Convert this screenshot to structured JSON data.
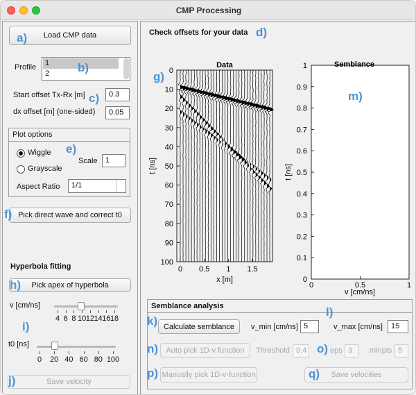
{
  "window": {
    "title": "CMP Processing"
  },
  "annotations": {
    "a": "a)",
    "b": "b)",
    "c": "c)",
    "d": "d)",
    "e": "e)",
    "f": "f)",
    "g": "g)",
    "h": "h)",
    "i": "i)",
    "j": "j)",
    "k": "k)",
    "l": "l)",
    "m": "m)",
    "n": "n)",
    "o": "o)",
    "p": "p)",
    "q": "q)"
  },
  "left": {
    "load_cmp_label": "Load CMP data",
    "profile_label": "Profile",
    "profile_items": [
      "1",
      "2"
    ],
    "start_offset_label": "Start offset Tx-Rx [m]",
    "start_offset_value": "0.3",
    "dx_offset_label": "dx offset [m] (one-sided)",
    "dx_offset_value": "0.05",
    "plot_options": {
      "title": "Plot options",
      "wiggle_label": "Wiggle",
      "grayscale_label": "Grayscale",
      "scale_label": "Scale",
      "scale_value": "1",
      "aspect_label": "Aspect Ratio",
      "aspect_value": "1/1",
      "selected_mode": "Wiggle"
    },
    "pick_direct_label": "Pick direct wave and correct t0",
    "hyperbola_title": "Hyperbola fitting",
    "pick_apex_label": "Pick apex of hyperbola",
    "v_label": "v [cm/ns]",
    "v_ticks": [
      "4",
      "6",
      "8",
      "10",
      "12",
      "14",
      "16",
      "18"
    ],
    "t0_label": "t0 [ns]",
    "t0_ticks": [
      "0",
      "20",
      "40",
      "60",
      "80",
      "100"
    ],
    "save_velocity_label": "Save velocity"
  },
  "right": {
    "header": "Check offsets for your data",
    "data_plot": {
      "title": "Data",
      "ylabel": "t [ns]",
      "xlabel": "x [m]",
      "yticks": [
        "0",
        "10",
        "20",
        "30",
        "40",
        "50",
        "60",
        "70",
        "80",
        "90",
        "100"
      ],
      "xticks": [
        "0",
        "0.5",
        "1",
        "1.5"
      ]
    },
    "semblance_plot": {
      "title": "Semblance",
      "ylabel": "t [ns]",
      "xlabel": "v [cm/ns]",
      "yticks": [
        "0",
        "0.1",
        "0.2",
        "0.3",
        "0.4",
        "0.5",
        "0.6",
        "0.7",
        "0.8",
        "0.9",
        "1"
      ],
      "xticks": [
        "0",
        "0.5",
        "1"
      ]
    },
    "semblance_analysis": {
      "title": "Semblance analysis",
      "calc_label": "Calculate semblance",
      "vmin_label": "v_min [cm/ns]",
      "vmin_value": "5",
      "vmax_label": "v_max [cm/ns]",
      "vmax_value": "15",
      "auto_pick_label": "Auto pick 1D-v function",
      "threshold_label": "Threshold",
      "threshold_value": "0.4",
      "eps_label": "eps",
      "eps_value": "3",
      "minpts_label": "minpts",
      "minpts_value": "5",
      "manual_pick_label": "Manually pick 1D-v-function",
      "save_velocities_label": "Save velocities"
    }
  },
  "colors": {
    "annotation": "#4e93d1",
    "disabled_text": "#a8a8a8"
  }
}
